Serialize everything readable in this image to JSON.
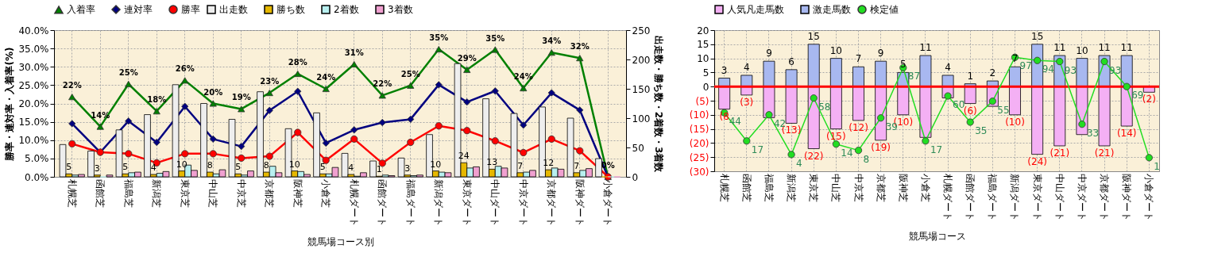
{
  "chart_data": [
    {
      "type": "bar",
      "xlabel": "競馬場コース別",
      "ylabel": "勝率・連対率・入着率(%)",
      "y2label": "出走数・勝ち数・2着数・3着数",
      "categories": [
        "札幌芝",
        "函館芝",
        "福島芝",
        "新潟芝",
        "東京芝",
        "中山芝",
        "中京芝",
        "京都芝",
        "阪神芝",
        "小倉芝",
        "札幌ダート",
        "函館ダート",
        "福島ダート",
        "新潟ダート",
        "東京ダート",
        "中山ダート",
        "中京ダート",
        "京都ダート",
        "阪神ダート",
        "小倉ダート"
      ],
      "series": [
        {
          "name": "出走数",
          "color": "#eeeeee",
          "axis": "y2",
          "values": [
            55,
            44,
            80,
            106,
            157,
            125,
            98,
            145,
            82,
            109,
            40,
            27,
            32,
            72,
            193,
            133,
            108,
            119,
            100,
            31
          ]
        },
        {
          "name": "勝ち数",
          "color": "#e6b800",
          "axis": "y2",
          "values": [
            5,
            3,
            5,
            4,
            10,
            8,
            5,
            8,
            10,
            5,
            4,
            1,
            3,
            10,
            24,
            13,
            7,
            12,
            7,
            0
          ],
          "value_labels": [
            "5",
            "3",
            "5",
            "4",
            "10",
            "8",
            "5",
            "8",
            "10",
            "5",
            "4",
            "1",
            "3",
            "10",
            "24",
            "13",
            "7",
            "12",
            "7",
            null
          ]
        },
        {
          "name": "2着数",
          "color": "#b8f0f0",
          "axis": "y2",
          "values": [
            3,
            0,
            7,
            6,
            20,
            5,
            3,
            18,
            9,
            5,
            1,
            3,
            2,
            8,
            15,
            18,
            8,
            15,
            11,
            0
          ]
        },
        {
          "name": "3着数",
          "color": "#f0a0d0",
          "axis": "y2",
          "values": [
            4,
            3,
            8,
            9,
            11,
            12,
            10,
            7,
            4,
            16,
            7,
            2,
            3,
            7,
            17,
            15,
            11,
            13,
            14,
            0
          ]
        },
        {
          "name": "入着率",
          "type": "line",
          "color": "#008000",
          "marker": "triangle",
          "axis": "y",
          "values": [
            21.8,
            13.7,
            25.3,
            17.9,
            26.3,
            20.0,
            18.5,
            22.9,
            28.1,
            24.0,
            30.7,
            22.2,
            24.9,
            34.8,
            29.2,
            34.7,
            24.2,
            33.9,
            32.4,
            0
          ],
          "value_labels": [
            "22%",
            "14%",
            "25%",
            "18%",
            "26%",
            "20%",
            "19%",
            "23%",
            "28%",
            "24%",
            "31%",
            "22%",
            "25%",
            "35%",
            "29%",
            "35%",
            "24%",
            "34%",
            "32%",
            "0%"
          ]
        },
        {
          "name": "連対率",
          "type": "line",
          "color": "#000080",
          "marker": "diamond",
          "axis": "y",
          "values": [
            14.5,
            6.7,
            15.2,
            9.4,
            19.2,
            10.3,
            8.3,
            18.1,
            23.3,
            9.2,
            12.8,
            14.8,
            15.7,
            25.1,
            20.4,
            23.4,
            14.1,
            22.9,
            18.2,
            0
          ]
        },
        {
          "name": "勝率",
          "type": "line",
          "color": "#ff0000",
          "marker": "circle",
          "axis": "y",
          "values": [
            9.0,
            6.7,
            6.3,
            3.8,
            6.3,
            6.3,
            5.1,
            5.6,
            12.1,
            4.5,
            10.3,
            3.7,
            9.4,
            13.9,
            12.6,
            9.8,
            6.6,
            10.3,
            7.1,
            0
          ]
        }
      ],
      "ylim": [
        0,
        40
      ],
      "yticks": [
        {
          "value": 0,
          "label": "0.0%"
        },
        {
          "value": 5,
          "label": "5.0%"
        },
        {
          "value": 10,
          "label": "10.0%"
        },
        {
          "value": 15,
          "label": "15.0%"
        },
        {
          "value": 20,
          "label": "20.0%"
        },
        {
          "value": 25,
          "label": "25.0%"
        },
        {
          "value": 30,
          "label": "30.0%"
        },
        {
          "value": 35,
          "label": "35.0%"
        },
        {
          "value": 40,
          "label": "40.0%"
        }
      ],
      "y2lim": [
        0,
        250
      ],
      "y2ticks": [
        0,
        50,
        100,
        150,
        200,
        250
      ],
      "grid": true,
      "legend": "top"
    },
    {
      "type": "bar",
      "stacked": true,
      "xlabel": "競馬場コース",
      "categories": [
        "札幌芝",
        "函館芝",
        "福島芝",
        "新潟芝",
        "東京芝",
        "中山芝",
        "中京芝",
        "京都芝",
        "阪神芝",
        "小倉芝",
        "札幌ダート",
        "函館ダート",
        "福島ダート",
        "新潟ダート",
        "東京ダート",
        "中山ダート",
        "中京ダート",
        "京都ダート",
        "阪神ダート",
        "小倉ダート"
      ],
      "series": [
        {
          "name": "人気凡走馬数",
          "color": "#f4b0f4",
          "values": [
            -8,
            -3,
            -11,
            -13,
            -22,
            -15,
            -12,
            -19,
            -10,
            -18,
            -4,
            -6,
            -7,
            -10,
            -24,
            -21,
            -17,
            -21,
            -14,
            -2
          ],
          "value_labels": [
            "(8",
            "(3)",
            null,
            "(13)",
            "(22)",
            "(15)",
            "(12)",
            "(19)",
            "(10)",
            null,
            null,
            "(6)",
            null,
            "(10)",
            "(24)",
            "(21)",
            null,
            "(21)",
            "(14)",
            "(2)"
          ]
        },
        {
          "name": "激走馬数",
          "color": "#a8b8f0",
          "values": [
            3,
            4,
            9,
            6,
            15,
            10,
            7,
            9,
            5,
            11,
            4,
            1,
            2,
            7,
            15,
            11,
            10,
            11,
            11,
            null
          ],
          "value_labels": [
            "3",
            "4",
            "9",
            "6",
            "15",
            "10",
            "7",
            "9",
            "5",
            "11",
            "4",
            "1",
            "2",
            "7",
            "15",
            "11",
            "10",
            "11",
            "11",
            null
          ]
        },
        {
          "name": "検定値",
          "type": "line",
          "color": "#22dd22",
          "marker": "circle",
          "axis": "y2",
          "values": [
            44,
            17,
            42,
            4,
            58,
            14,
            8,
            39,
            87,
            17,
            60,
            35,
            55,
            97,
            94,
            93,
            33,
            93,
            69,
            1
          ],
          "value_labels": [
            "44",
            "17",
            "42",
            "4",
            "58",
            "14",
            "8",
            "39",
            "87",
            "17",
            "60",
            "35",
            "55",
            "97",
            "94",
            "93",
            "33",
            "93",
            "69",
            "1"
          ]
        }
      ],
      "ylim": [
        -30,
        20
      ],
      "yticks": [
        20,
        15,
        10,
        5,
        0,
        {
          "value": -5,
          "label": "(5)"
        },
        {
          "value": -10,
          "label": "(10)"
        },
        {
          "value": -15,
          "label": "(15)"
        },
        {
          "value": -20,
          "label": "(20)"
        },
        {
          "value": -25,
          "label": "(25)"
        },
        {
          "value": -30,
          "label": "(30)"
        }
      ],
      "y2lim": [
        -12,
        123
      ],
      "ref_lines": [
        {
          "axis": "y",
          "value": 0,
          "color": "#ff0000"
        }
      ],
      "grid": true,
      "legend": "top"
    }
  ]
}
